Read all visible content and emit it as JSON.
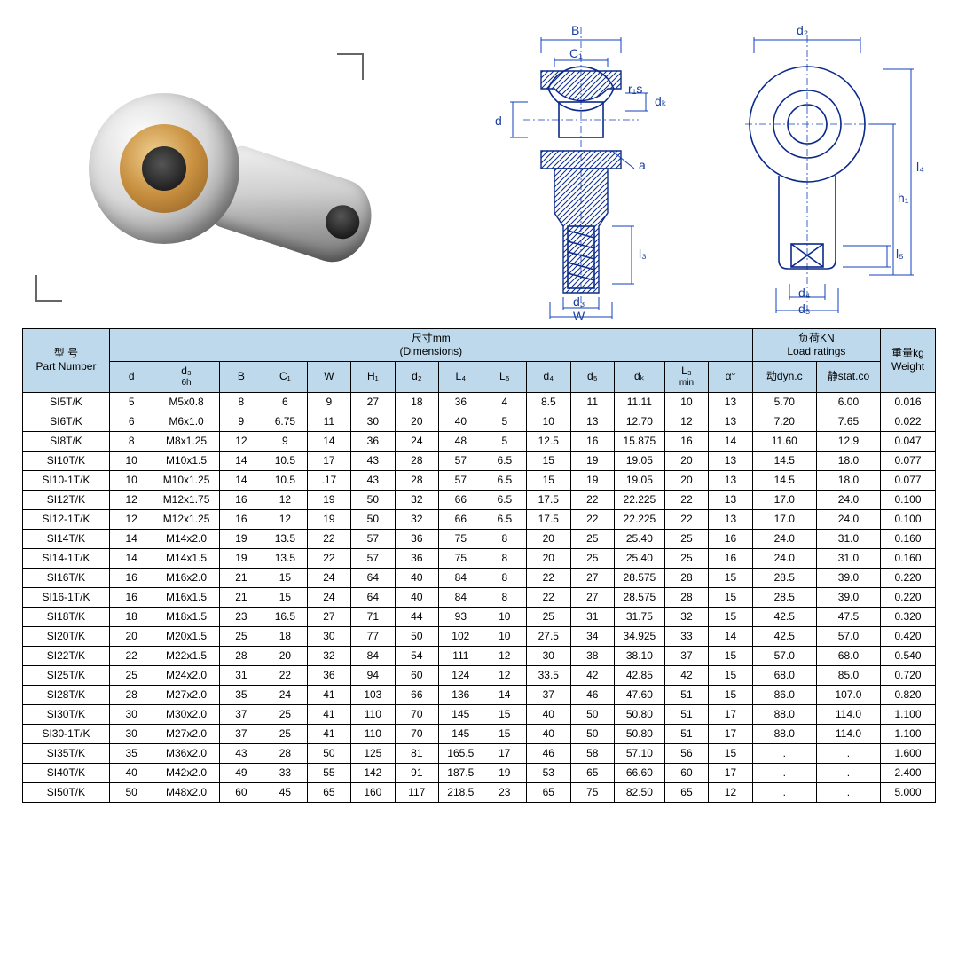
{
  "headers": {
    "part_cn": "型 号",
    "part_en": "Part Number",
    "dim_cn": "尺寸mm",
    "dim_en": "(Dimensions)",
    "load_cn": "负荷KN",
    "load_en": "Load ratings",
    "weight_cn": "重量kg",
    "weight_en": "Weight",
    "d": "d",
    "d3": "d₃",
    "d3_sub": "6h",
    "B": "B",
    "C1": "C₁",
    "W": "W",
    "H1": "H₁",
    "d2": "d₂",
    "L4": "L₄",
    "L5": "L₅",
    "d4": "d₄",
    "d5": "d₅",
    "dk": "dₖ",
    "L3": "L₃",
    "L3_sub": "min",
    "alpha": "α°",
    "dyn": "动dyn.c",
    "stat": "静stat.co"
  },
  "diagram_labels": {
    "B": "B",
    "C1": "C₁",
    "r1s": "r₁s",
    "dK": "dₖ",
    "d": "d",
    "a": "a",
    "l3": "l₃",
    "d3": "d₃",
    "W": "W",
    "d2": "d₂",
    "l4": "l₄",
    "h1": "h₁",
    "l5": "l₅",
    "d4": "d₄",
    "d5": "d₅"
  },
  "colors": {
    "header_bg": "#bdd9eb",
    "border": "#000000",
    "diagram_stroke": "#0a2a8a",
    "dim_stroke": "#1040c0"
  },
  "columns": [
    "part",
    "d",
    "d3",
    "B",
    "C1",
    "W",
    "H1",
    "d2",
    "L4",
    "L5",
    "d4",
    "d5",
    "dk",
    "L3",
    "alpha",
    "dyn",
    "stat",
    "wt"
  ],
  "rows": [
    [
      "SI5T/K",
      "5",
      "M5x0.8",
      "8",
      "6",
      "9",
      "27",
      "18",
      "36",
      "4",
      "8.5",
      "11",
      "11.11",
      "10",
      "13",
      "5.70",
      "6.00",
      "0.016"
    ],
    [
      "SI6T/K",
      "6",
      "M6x1.0",
      "9",
      "6.75",
      "11",
      "30",
      "20",
      "40",
      "5",
      "10",
      "13",
      "12.70",
      "12",
      "13",
      "7.20",
      "7.65",
      "0.022"
    ],
    [
      "SI8T/K",
      "8",
      "M8x1.25",
      "12",
      "9",
      "14",
      "36",
      "24",
      "48",
      "5",
      "12.5",
      "16",
      "15.875",
      "16",
      "14",
      "11.60",
      "12.9",
      "0.047"
    ],
    [
      "SI10T/K",
      "10",
      "M10x1.5",
      "14",
      "10.5",
      "17",
      "43",
      "28",
      "57",
      "6.5",
      "15",
      "19",
      "19.05",
      "20",
      "13",
      "14.5",
      "18.0",
      "0.077"
    ],
    [
      "SI10-1T/K",
      "10",
      "M10x1.25",
      "14",
      "10.5",
      ".17",
      "43",
      "28",
      "57",
      "6.5",
      "15",
      "19",
      "19.05",
      "20",
      "13",
      "14.5",
      "18.0",
      "0.077"
    ],
    [
      "SI12T/K",
      "12",
      "M12x1.75",
      "16",
      "12",
      "19",
      "50",
      "32",
      "66",
      "6.5",
      "17.5",
      "22",
      "22.225",
      "22",
      "13",
      "17.0",
      "24.0",
      "0.100"
    ],
    [
      "SI12-1T/K",
      "12",
      "M12x1.25",
      "16",
      "12",
      "19",
      "50",
      "32",
      "66",
      "6.5",
      "17.5",
      "22",
      "22.225",
      "22",
      "13",
      "17.0",
      "24.0",
      "0.100"
    ],
    [
      "SI14T/K",
      "14",
      "M14x2.0",
      "19",
      "13.5",
      "22",
      "57",
      "36",
      "75",
      "8",
      "20",
      "25",
      "25.40",
      "25",
      "16",
      "24.0",
      "31.0",
      "0.160"
    ],
    [
      "SI14-1T/K",
      "14",
      "M14x1.5",
      "19",
      "13.5",
      "22",
      "57",
      "36",
      "75",
      "8",
      "20",
      "25",
      "25.40",
      "25",
      "16",
      "24.0",
      "31.0",
      "0.160"
    ],
    [
      "SI16T/K",
      "16",
      "M16x2.0",
      "21",
      "15",
      "24",
      "64",
      "40",
      "84",
      "8",
      "22",
      "27",
      "28.575",
      "28",
      "15",
      "28.5",
      "39.0",
      "0.220"
    ],
    [
      "SI16-1T/K",
      "16",
      "M16x1.5",
      "21",
      "15",
      "24",
      "64",
      "40",
      "84",
      "8",
      "22",
      "27",
      "28.575",
      "28",
      "15",
      "28.5",
      "39.0",
      "0.220"
    ],
    [
      "SI18T/K",
      "18",
      "M18x1.5",
      "23",
      "16.5",
      "27",
      "71",
      "44",
      "93",
      "10",
      "25",
      "31",
      "31.75",
      "32",
      "15",
      "42.5",
      "47.5",
      "0.320"
    ],
    [
      "SI20T/K",
      "20",
      "M20x1.5",
      "25",
      "18",
      "30",
      "77",
      "50",
      "102",
      "10",
      "27.5",
      "34",
      "34.925",
      "33",
      "14",
      "42.5",
      "57.0",
      "0.420"
    ],
    [
      "SI22T/K",
      "22",
      "M22x1.5",
      "28",
      "20",
      "32",
      "84",
      "54",
      "111",
      "12",
      "30",
      "38",
      "38.10",
      "37",
      "15",
      "57.0",
      "68.0",
      "0.540"
    ],
    [
      "SI25T/K",
      "25",
      "M24x2.0",
      "31",
      "22",
      "36",
      "94",
      "60",
      "124",
      "12",
      "33.5",
      "42",
      "42.85",
      "42",
      "15",
      "68.0",
      "85.0",
      "0.720"
    ],
    [
      "SI28T/K",
      "28",
      "M27x2.0",
      "35",
      "24",
      "41",
      "103",
      "66",
      "136",
      "14",
      "37",
      "46",
      "47.60",
      "51",
      "15",
      "86.0",
      "107.0",
      "0.820"
    ],
    [
      "SI30T/K",
      "30",
      "M30x2.0",
      "37",
      "25",
      "41",
      "110",
      "70",
      "145",
      "15",
      "40",
      "50",
      "50.80",
      "51",
      "17",
      "88.0",
      "114.0",
      "1.100"
    ],
    [
      "SI30-1T/K",
      "30",
      "M27x2.0",
      "37",
      "25",
      "41",
      "110",
      "70",
      "145",
      "15",
      "40",
      "50",
      "50.80",
      "51",
      "17",
      "88.0",
      "114.0",
      "1.100"
    ],
    [
      "SI35T/K",
      "35",
      "M36x2.0",
      "43",
      "28",
      "50",
      "125",
      "81",
      "165.5",
      "17",
      "46",
      "58",
      "57.10",
      "56",
      "15",
      ".",
      ".",
      "1.600"
    ],
    [
      "SI40T/K",
      "40",
      "M42x2.0",
      "49",
      "33",
      "55",
      "142",
      "91",
      "187.5",
      "19",
      "53",
      "65",
      "66.60",
      "60",
      "17",
      ".",
      ".",
      "2.400"
    ],
    [
      "SI50T/K",
      "50",
      "M48x2.0",
      "60",
      "45",
      "65",
      "160",
      "117",
      "218.5",
      "23",
      "65",
      "75",
      "82.50",
      "65",
      "12",
      ".",
      ".",
      "5.000"
    ]
  ]
}
